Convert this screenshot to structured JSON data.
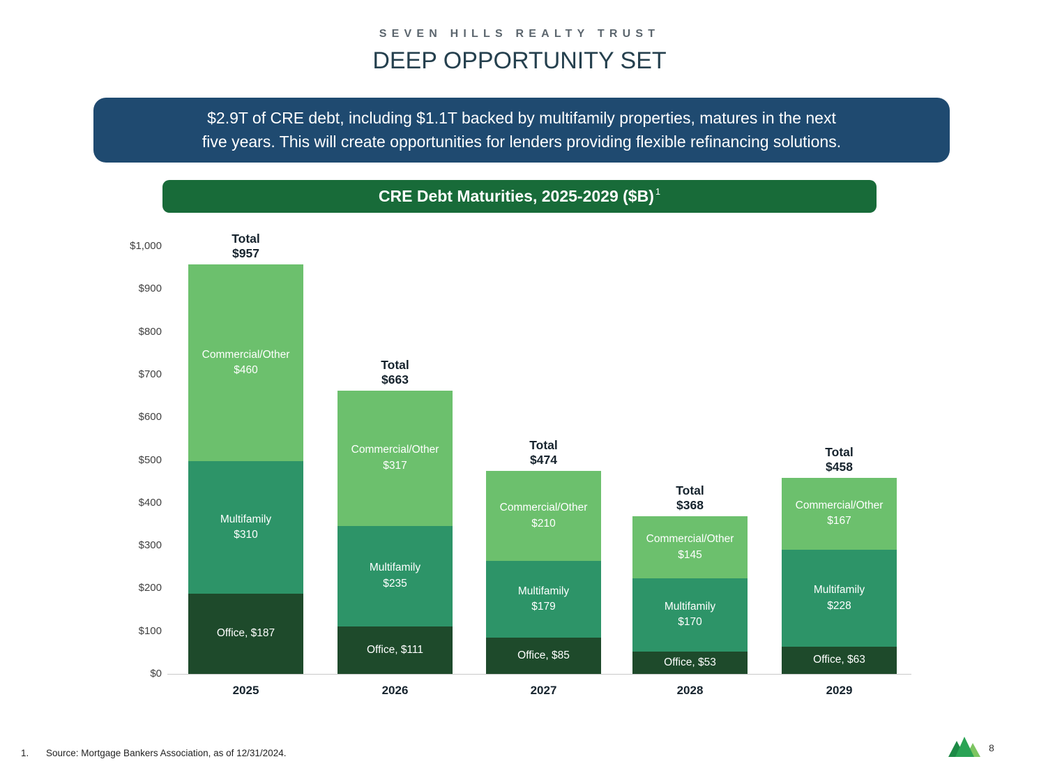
{
  "header": {
    "brand": "SEVEN HILLS REALTY TRUST",
    "title": "DEEP OPPORTUNITY SET"
  },
  "callout": {
    "line1": "$2.9T of CRE debt, including $1.1T backed by multifamily properties, matures in the next",
    "line2": "five years. This will create opportunities for lenders providing flexible refinancing solutions."
  },
  "chart_header": {
    "title": "CRE Debt Maturities, 2025-2029 ($B)",
    "footnote_marker": "1"
  },
  "chart_data": {
    "type": "bar",
    "stacked": true,
    "title": "CRE Debt Maturities, 2025-2029 ($B)",
    "categories": [
      "2025",
      "2026",
      "2027",
      "2028",
      "2029"
    ],
    "series": [
      {
        "name": "Office",
        "color": "#1e4a2b",
        "label_inline": true,
        "values": [
          187,
          111,
          85,
          53,
          63
        ]
      },
      {
        "name": "Multifamily",
        "color": "#2d9468",
        "label_inline": false,
        "values": [
          310,
          235,
          179,
          170,
          228
        ]
      },
      {
        "name": "Commercial/Other",
        "color": "#6cc06d",
        "label_inline": false,
        "values": [
          460,
          317,
          210,
          145,
          167
        ]
      }
    ],
    "totals": [
      957,
      663,
      474,
      368,
      458
    ],
    "total_label": "Total",
    "ylim": [
      0,
      1000
    ],
    "ytick_step": 100,
    "ytick_labels": [
      "$0",
      "$100",
      "$200",
      "$300",
      "$400",
      "$500",
      "$600",
      "$700",
      "$800",
      "$900",
      "$1,000"
    ],
    "legend_position": "none",
    "grid": false
  },
  "footer": {
    "footnote_number": "1.",
    "source": "Source: Mortgage Bankers Association, as of 12/31/2024.",
    "page_number": "8"
  },
  "colors": {
    "banner_navy": "#1f4a70",
    "header_green": "#186b39",
    "office": "#1e4a2b",
    "multifamily": "#2d9468",
    "commercial_other": "#6cc06d"
  }
}
